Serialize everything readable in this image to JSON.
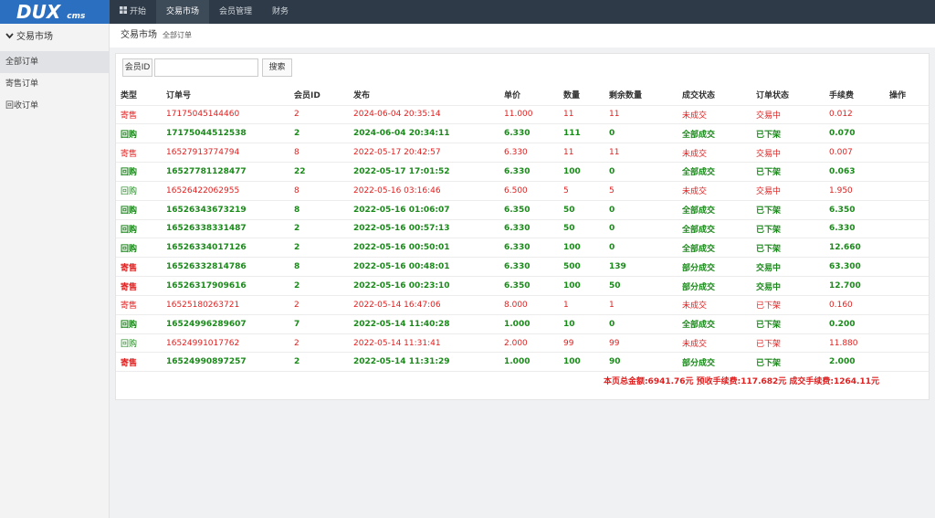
{
  "header": {
    "logo": "DUX",
    "logo_sub": "cms",
    "nav": [
      "开始",
      "交易市场",
      "会员管理",
      "财务"
    ],
    "active_nav": 1
  },
  "sidebar": {
    "title": "交易市场",
    "items": [
      "全部订单",
      "寄售订单",
      "回收订单"
    ],
    "active_item": 0
  },
  "breadcrumb": {
    "title": "交易市场",
    "sub": "全部订单"
  },
  "search": {
    "label": "会员ID",
    "button": "搜索"
  },
  "table": {
    "columns": [
      "类型",
      "订单号",
      "会员ID",
      "发布",
      "单价",
      "数量",
      "剩余数量",
      "成交状态",
      "订单状态",
      "手续费",
      "操作"
    ],
    "rows": [
      {
        "cells": [
          "寄售",
          "17175045144460",
          "2",
          "2024-06-04 20:35:14",
          "11.000",
          "11",
          "11",
          "未成交",
          "交易中",
          "0.012"
        ],
        "type_color": "#e02020",
        "color": "#e02020",
        "bold": false
      },
      {
        "cells": [
          "回购",
          "17175044512538",
          "2",
          "2024-06-04 20:34:11",
          "6.330",
          "111",
          "0",
          "全部成交",
          "已下架",
          "0.070"
        ],
        "type_color": "#1a8a1a",
        "color": "#1a8a1a",
        "bold": true
      },
      {
        "cells": [
          "寄售",
          "16527913774794",
          "8",
          "2022-05-17 20:42:57",
          "6.330",
          "11",
          "11",
          "未成交",
          "交易中",
          "0.007"
        ],
        "type_color": "#e02020",
        "color": "#e02020",
        "bold": false
      },
      {
        "cells": [
          "回购",
          "16527781128477",
          "22",
          "2022-05-17 17:01:52",
          "6.330",
          "100",
          "0",
          "全部成交",
          "已下架",
          "0.063"
        ],
        "type_color": "#1a8a1a",
        "color": "#1a8a1a",
        "bold": true
      },
      {
        "cells": [
          "回购",
          "16526422062955",
          "8",
          "2022-05-16 03:16:46",
          "6.500",
          "5",
          "5",
          "未成交",
          "交易中",
          "1.950"
        ],
        "type_color": "#1a8a1a",
        "color": "#e02020",
        "bold": false
      },
      {
        "cells": [
          "回购",
          "16526343673219",
          "8",
          "2022-05-16 01:06:07",
          "6.350",
          "50",
          "0",
          "全部成交",
          "已下架",
          "6.350"
        ],
        "type_color": "#1a8a1a",
        "color": "#1a8a1a",
        "bold": true
      },
      {
        "cells": [
          "回购",
          "16526338331487",
          "2",
          "2022-05-16 00:57:13",
          "6.330",
          "50",
          "0",
          "全部成交",
          "已下架",
          "6.330"
        ],
        "type_color": "#1a8a1a",
        "color": "#1a8a1a",
        "bold": true
      },
      {
        "cells": [
          "回购",
          "16526334017126",
          "2",
          "2022-05-16 00:50:01",
          "6.330",
          "100",
          "0",
          "全部成交",
          "已下架",
          "12.660"
        ],
        "type_color": "#1a8a1a",
        "color": "#1a8a1a",
        "bold": true
      },
      {
        "cells": [
          "寄售",
          "16526332814786",
          "8",
          "2022-05-16 00:48:01",
          "6.330",
          "500",
          "139",
          "部分成交",
          "交易中",
          "63.300"
        ],
        "type_color": "#e02020",
        "color": "#1a8a1a",
        "bold": true
      },
      {
        "cells": [
          "寄售",
          "16526317909616",
          "2",
          "2022-05-16 00:23:10",
          "6.350",
          "100",
          "50",
          "部分成交",
          "交易中",
          "12.700"
        ],
        "type_color": "#e02020",
        "color": "#1a8a1a",
        "bold": true
      },
      {
        "cells": [
          "寄售",
          "16525180263721",
          "2",
          "2022-05-14 16:47:06",
          "8.000",
          "1",
          "1",
          "未成交",
          "已下架",
          "0.160"
        ],
        "type_color": "#e02020",
        "color": "#e02020",
        "bold": false
      },
      {
        "cells": [
          "回购",
          "16524996289607",
          "7",
          "2022-05-14 11:40:28",
          "1.000",
          "10",
          "0",
          "全部成交",
          "已下架",
          "0.200"
        ],
        "type_color": "#1a8a1a",
        "color": "#1a8a1a",
        "bold": true
      },
      {
        "cells": [
          "回购",
          "16524991017762",
          "2",
          "2022-05-14 11:31:41",
          "2.000",
          "99",
          "99",
          "未成交",
          "已下架",
          "11.880"
        ],
        "type_color": "#1a8a1a",
        "color": "#e02020",
        "bold": false
      },
      {
        "cells": [
          "寄售",
          "16524990897257",
          "2",
          "2022-05-14 11:31:29",
          "1.000",
          "100",
          "90",
          "部分成交",
          "已下架",
          "2.000"
        ],
        "type_color": "#e02020",
        "color": "#1a8a1a",
        "bold": true
      }
    ],
    "summary": "本页总金额:6941.76元 预收手续费:117.682元 成交手续费:1264.11元"
  }
}
